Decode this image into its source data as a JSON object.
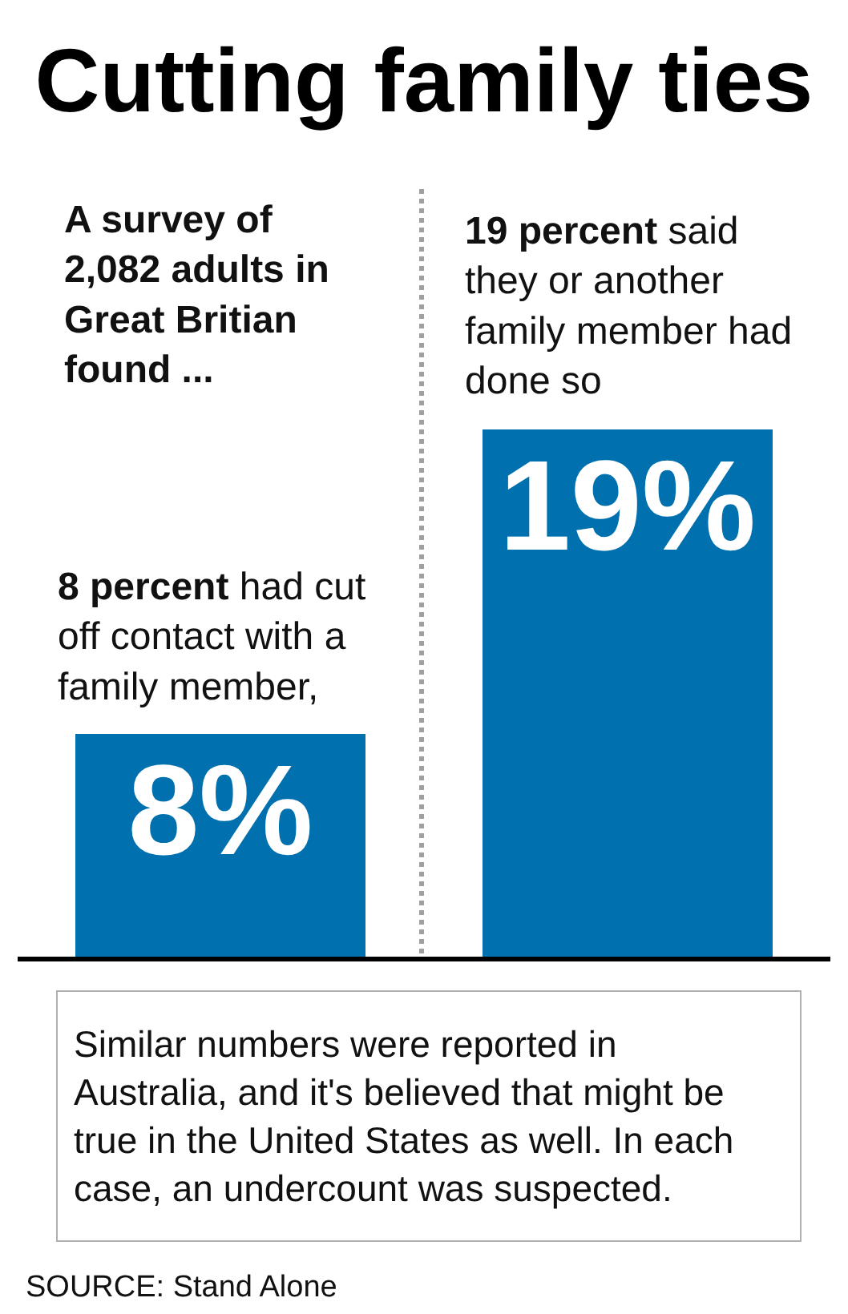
{
  "chart_data": {
    "type": "bar",
    "title": "Cutting family ties",
    "subtitle": "A survey of 2,082 adults in Great Britian found ...",
    "categories": [
      null,
      null
    ],
    "values": [
      8,
      19
    ],
    "value_labels": [
      "8%",
      "19%"
    ],
    "color": "#0070ae",
    "annotations": [
      {
        "text": "8 percent had cut off contact with a family member,",
        "y": 8
      },
      {
        "text": "19 percent said they or another family member had done so",
        "y": 19
      },
      "Similar numbers were reported in Australia, and it's believed that might be true in the United States as well. In each case, an undercount was suspected.",
      "SOURCE: Stand Alone"
    ]
  }
}
